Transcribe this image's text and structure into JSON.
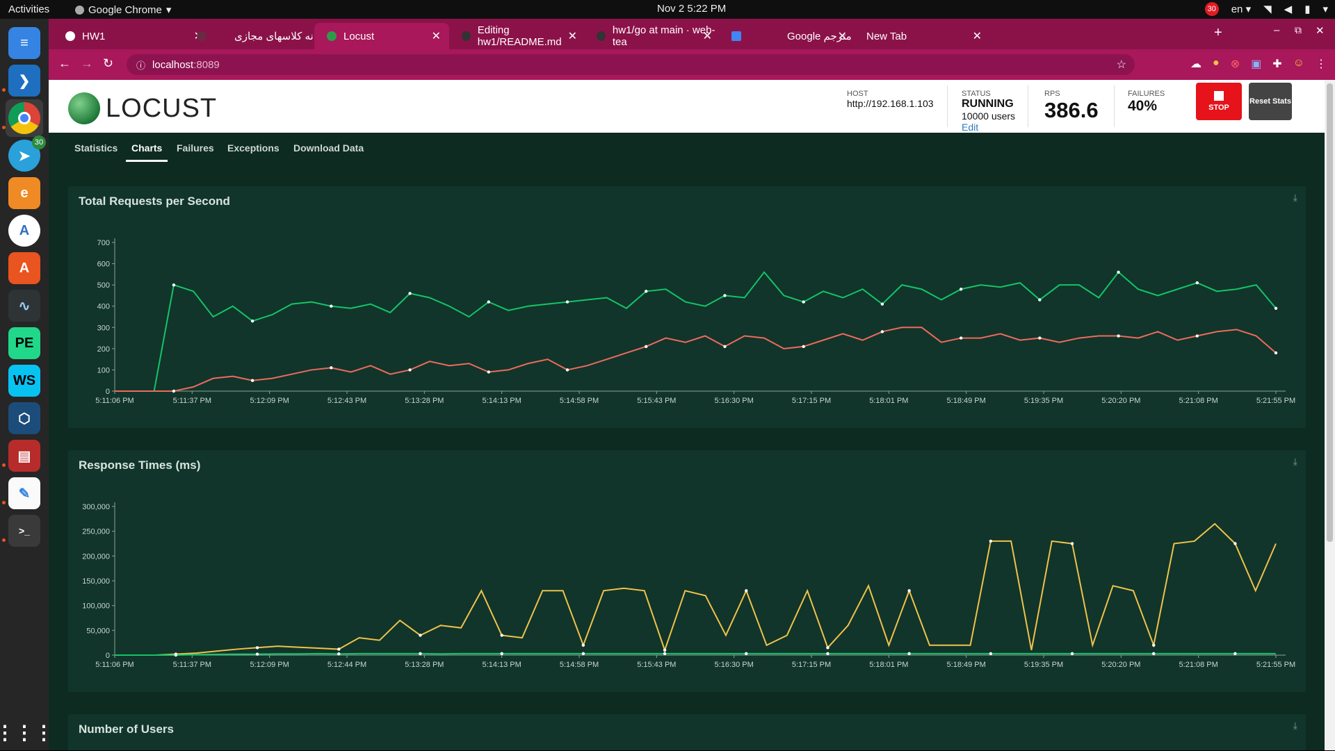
{
  "topbar": {
    "activities": "Activities",
    "app": "Google Chrome",
    "clock": "Nov 2  5:22 PM",
    "notif": "30",
    "lang": "en"
  },
  "dock": {
    "telegram_badge": "30",
    "pe_label": "PE",
    "ws_label": "WS"
  },
  "tabs": [
    {
      "label": "HW1"
    },
    {
      "label": "سامانه کلاسهای مجازی"
    },
    {
      "label": "Locust"
    },
    {
      "label": "Editing hw1/README.md"
    },
    {
      "label": "hw1/go at main · web-tea"
    },
    {
      "label": "Google مترجم"
    },
    {
      "label": "New Tab"
    }
  ],
  "address": {
    "host": "localhost",
    "port": ":8089"
  },
  "locust": {
    "logo": "LOCUST",
    "host_label": "HOST",
    "host_value": "http://192.168.1.103",
    "status_label": "STATUS",
    "status_value": "RUNNING",
    "users_value": "10000 users",
    "edit": "Edit",
    "rps_label": "RPS",
    "rps_value": "386.6",
    "failures_label": "FAILURES",
    "failures_value": "40%",
    "stop": "STOP",
    "reset": "Reset Stats"
  },
  "nav": [
    "Statistics",
    "Charts",
    "Failures",
    "Exceptions",
    "Download Data"
  ],
  "chart_data": [
    {
      "type": "line",
      "title": "Total Requests per Second",
      "xlabels": [
        "5:11:06 PM",
        "5:11:37 PM",
        "5:12:09 PM",
        "5:12:43 PM",
        "5:13:28 PM",
        "5:14:13 PM",
        "5:14:58 PM",
        "5:15:43 PM",
        "5:16:30 PM",
        "5:17:15 PM",
        "5:18:01 PM",
        "5:18:49 PM",
        "5:19:35 PM",
        "5:20:20 PM",
        "5:21:08 PM",
        "5:21:55 PM"
      ],
      "yticks": [
        0,
        100,
        200,
        300,
        400,
        500,
        600,
        700
      ],
      "ylim": [
        0,
        700
      ],
      "series": [
        {
          "color": "#13c46a",
          "values": [
            0,
            0,
            0,
            500,
            470,
            350,
            400,
            330,
            360,
            410,
            420,
            400,
            390,
            410,
            370,
            460,
            440,
            400,
            350,
            420,
            380,
            400,
            410,
            420,
            430,
            440,
            390,
            470,
            480,
            420,
            400,
            450,
            440,
            560,
            450,
            420,
            470,
            440,
            480,
            410,
            500,
            480,
            430,
            480,
            500,
            490,
            510,
            430,
            500,
            500,
            440,
            560,
            480,
            450,
            480,
            510,
            470,
            480,
            500,
            390
          ]
        },
        {
          "color": "#ef6a5e",
          "values": [
            0,
            0,
            0,
            0,
            20,
            60,
            70,
            50,
            60,
            80,
            100,
            110,
            90,
            120,
            80,
            100,
            140,
            120,
            130,
            90,
            100,
            130,
            150,
            100,
            120,
            150,
            180,
            210,
            250,
            230,
            260,
            210,
            260,
            250,
            200,
            210,
            240,
            270,
            240,
            280,
            300,
            300,
            230,
            250,
            250,
            270,
            240,
            250,
            230,
            250,
            260,
            260,
            250,
            280,
            240,
            260,
            280,
            290,
            260,
            180
          ]
        }
      ]
    },
    {
      "type": "line",
      "title": "Response Times (ms)",
      "xlabels": [
        "5:11:06 PM",
        "5:11:37 PM",
        "5:12:09 PM",
        "5:12:44 PM",
        "5:13:28 PM",
        "5:14:13 PM",
        "5:14:58 PM",
        "5:15:43 PM",
        "5:16:30 PM",
        "5:17:15 PM",
        "5:18:01 PM",
        "5:18:49 PM",
        "5:19:35 PM",
        "5:20:20 PM",
        "5:21:08 PM",
        "5:21:55 PM"
      ],
      "yticks": [
        "0",
        "50,000",
        "100,000",
        "150,000",
        "200,000",
        "250,000",
        "300,000"
      ],
      "ylim": [
        0,
        300000
      ],
      "series": [
        {
          "color": "#f0c24b",
          "values": [
            0,
            0,
            0,
            2000,
            4000,
            8000,
            12000,
            15000,
            18000,
            16000,
            14000,
            12000,
            35000,
            30000,
            70000,
            40000,
            60000,
            55000,
            130000,
            40000,
            35000,
            130000,
            130000,
            20000,
            130000,
            135000,
            130000,
            10000,
            130000,
            120000,
            40000,
            130000,
            20000,
            40000,
            130000,
            15000,
            60000,
            140000,
            20000,
            130000,
            20000,
            20000,
            20000,
            230000,
            230000,
            10000,
            230000,
            225000,
            20000,
            140000,
            130000,
            20000,
            225000,
            230000,
            265000,
            225000,
            130000,
            225000
          ]
        },
        {
          "color": "#13c46a",
          "values": [
            0,
            0,
            0,
            0,
            1000,
            1500,
            2000,
            2000,
            2500,
            2500,
            3000,
            2500,
            3000,
            3000,
            3000,
            3000,
            2500,
            3000,
            3000,
            3000,
            3000,
            3000,
            3000,
            3000,
            3000,
            3000,
            3000,
            3000,
            3000,
            3000,
            3000,
            3000,
            3000,
            3000,
            3000,
            3000,
            3000,
            3000,
            3000,
            3000,
            3000,
            3000,
            3000,
            3000,
            3000,
            3000,
            3000,
            3000,
            3000,
            3000,
            3000,
            3000,
            3000,
            3000,
            3000,
            3000,
            3000,
            3000
          ]
        }
      ]
    },
    {
      "type": "line",
      "title": "Number of Users"
    }
  ]
}
